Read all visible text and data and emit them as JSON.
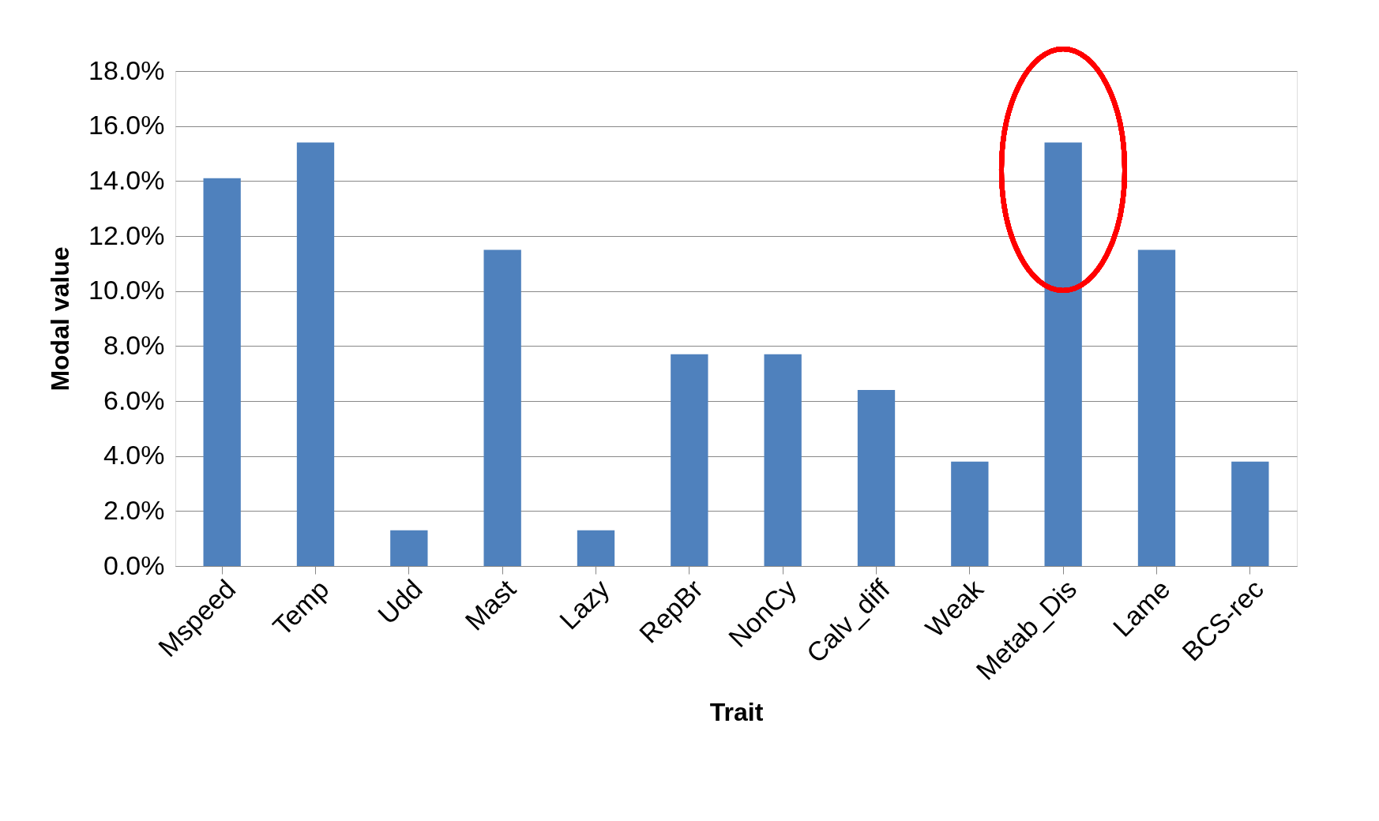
{
  "chart_data": {
    "type": "bar",
    "xlabel": "Trait",
    "ylabel": "Modal value",
    "categories": [
      "Mspeed",
      "Temp",
      "Udd",
      "Mast",
      "Lazy",
      "RepBr",
      "NonCy",
      "Calv_diff",
      "Weak",
      "Metab_Dis",
      "Lame",
      "BCS-rec"
    ],
    "values": [
      14.1,
      15.4,
      1.3,
      11.5,
      1.3,
      7.7,
      7.7,
      6.4,
      3.8,
      15.4,
      11.5,
      3.8
    ],
    "color": "#4f81bd",
    "ylim": [
      0,
      18
    ],
    "yticks": [
      {
        "value": 0,
        "label": "0.0%"
      },
      {
        "value": 2,
        "label": "2.0%"
      },
      {
        "value": 4,
        "label": "4.0%"
      },
      {
        "value": 6,
        "label": "6.0%"
      },
      {
        "value": 8,
        "label": "8.0%"
      },
      {
        "value": 10,
        "label": "10.0%"
      },
      {
        "value": 12,
        "label": "12.0%"
      },
      {
        "value": 14,
        "label": "14.0%"
      },
      {
        "value": 16,
        "label": "16.0%"
      },
      {
        "value": 18,
        "label": "18.0%"
      }
    ],
    "grid": "y"
  }
}
